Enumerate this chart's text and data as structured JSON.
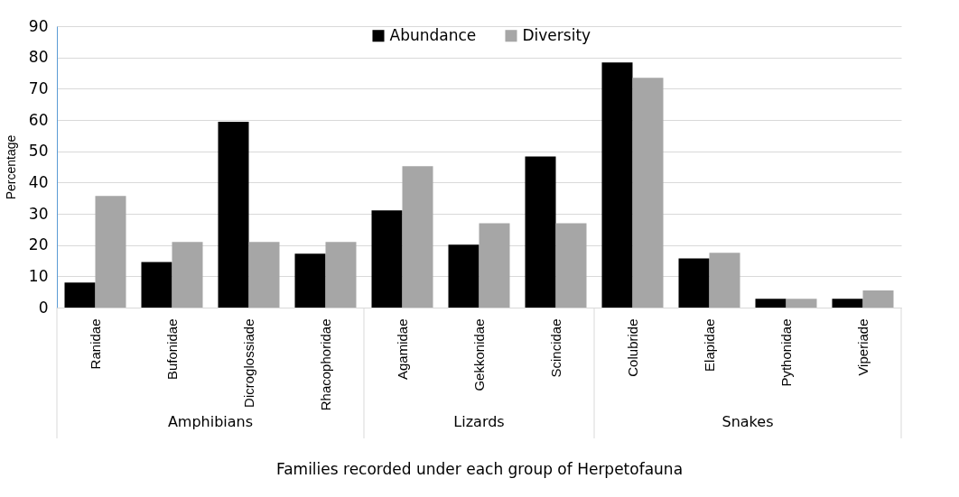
{
  "chart_data": {
    "type": "bar",
    "xlabel": "Families recorded under each group of Herpetofauna",
    "ylabel": "Percentage",
    "categories": [
      "Ranidae",
      "Bufonidae",
      "Dicroglossiade",
      "Rhacophoridae",
      "Agamidae",
      "Gekkonidae",
      "Scincidae",
      "Colubride",
      "Elapidae",
      "Pythonidae",
      "Viperiade"
    ],
    "series": [
      {
        "name": "Abundance",
        "color": "#000000",
        "values": [
          8.0,
          14.6,
          59.4,
          17.2,
          31.1,
          20.1,
          48.3,
          78.4,
          15.7,
          2.8,
          2.8
        ]
      },
      {
        "name": "Diversity",
        "color": "#a6a6a6",
        "values": [
          35.7,
          21.0,
          21.0,
          21.0,
          45.2,
          27.0,
          27.0,
          73.5,
          17.5,
          2.8,
          5.5
        ]
      }
    ],
    "annotations": [
      "Amphibians",
      "Lizards",
      "Snakes"
    ],
    "ylim": [
      0,
      90
    ],
    "yticks": [
      0,
      10,
      20,
      30,
      40,
      50,
      60,
      70,
      80,
      90
    ],
    "grid": "y",
    "legend": "top"
  }
}
